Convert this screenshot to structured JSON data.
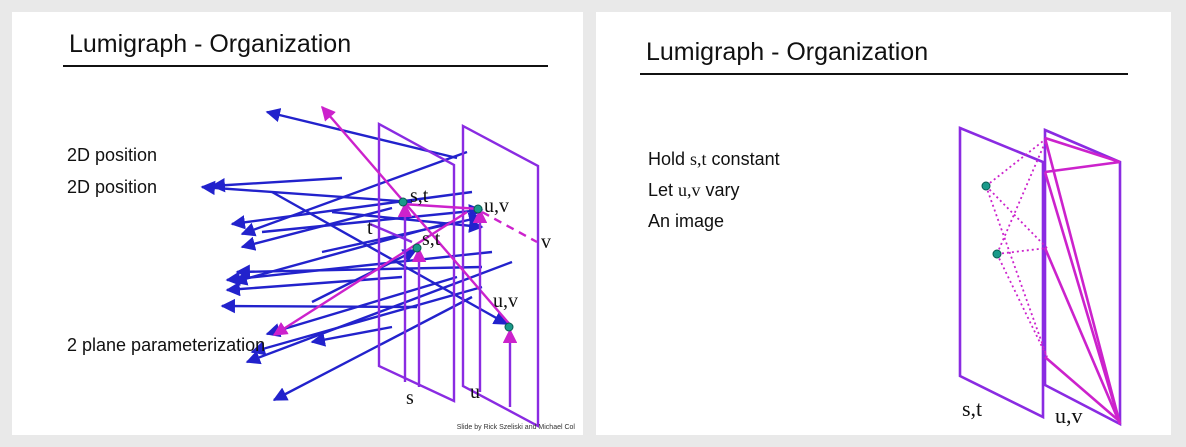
{
  "left_slide": {
    "title": "Lumigraph - Organization",
    "lines": [
      "2D position",
      "2D position",
      "2 plane parameterization"
    ],
    "labels": {
      "st_upper": "s,t",
      "st_lower": "s,t",
      "uv_upper": "u,v",
      "uv_lower": "u,v",
      "t_axis": "t",
      "v_axis": "v",
      "s_axis": "s",
      "u_axis": "u"
    },
    "credit": "Slide by Rick Szeliski and Michael Col"
  },
  "right_slide": {
    "title": "Lumigraph - Organization",
    "lines": [
      {
        "prefix": "Hold ",
        "var": "s,t",
        "suffix": " constant"
      },
      {
        "prefix": "Let ",
        "var": "u,v",
        "suffix": " vary"
      },
      {
        "prefix": "An image",
        "var": "",
        "suffix": ""
      }
    ],
    "labels": {
      "st_plane": "s,t",
      "uv_plane": "u,v"
    }
  },
  "colors": {
    "ray_blue": "#2222cc",
    "ray_magenta": "#cc22cc",
    "plane_purple": "#8a2be2",
    "point_teal": "#1a9a8a"
  }
}
